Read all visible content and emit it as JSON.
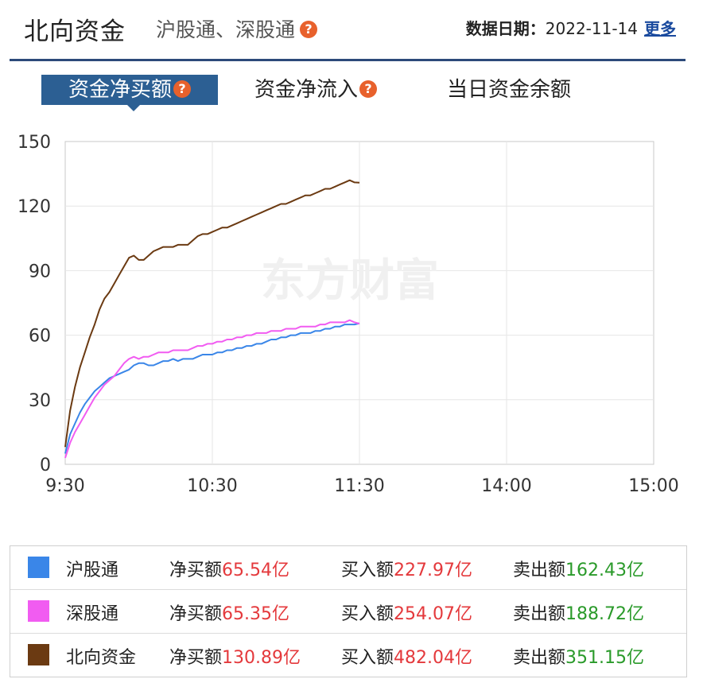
{
  "header": {
    "title": "北向资金",
    "subtitle": "沪股通、深股通",
    "help_symbol": "?",
    "date_label": "数据日期：",
    "date_value": "2022-11-14",
    "more_link": "更多"
  },
  "tabs": [
    {
      "label": "资金净买额",
      "active": true,
      "has_help": true
    },
    {
      "label": "资金净流入",
      "active": false,
      "has_help": true
    },
    {
      "label": "当日资金余额",
      "active": false,
      "has_help": false
    }
  ],
  "watermark": "东方财富",
  "chart_data": {
    "type": "line",
    "x_ticks": [
      "9:30",
      "10:30",
      "11:30",
      "14:00",
      "15:00"
    ],
    "y_ticks": [
      0,
      30,
      60,
      90,
      120,
      150
    ],
    "ylim": [
      0,
      150
    ],
    "x_minutes_range": [
      0,
      240
    ],
    "grid": true,
    "series": [
      {
        "name": "沪股通",
        "color": "#3a86e8",
        "points": [
          [
            0,
            5
          ],
          [
            2,
            14
          ],
          [
            4,
            19
          ],
          [
            6,
            24
          ],
          [
            8,
            28
          ],
          [
            10,
            31
          ],
          [
            12,
            34
          ],
          [
            14,
            36
          ],
          [
            16,
            38
          ],
          [
            18,
            40
          ],
          [
            20,
            41
          ],
          [
            22,
            42
          ],
          [
            24,
            43
          ],
          [
            26,
            44
          ],
          [
            28,
            46
          ],
          [
            30,
            47
          ],
          [
            32,
            47
          ],
          [
            34,
            46
          ],
          [
            36,
            46
          ],
          [
            38,
            47
          ],
          [
            40,
            48
          ],
          [
            42,
            48
          ],
          [
            44,
            49
          ],
          [
            46,
            48
          ],
          [
            48,
            49
          ],
          [
            50,
            49
          ],
          [
            52,
            49
          ],
          [
            54,
            50
          ],
          [
            56,
            51
          ],
          [
            58,
            51
          ],
          [
            60,
            51
          ],
          [
            62,
            52
          ],
          [
            64,
            52
          ],
          [
            66,
            53
          ],
          [
            68,
            53
          ],
          [
            70,
            54
          ],
          [
            72,
            54
          ],
          [
            74,
            55
          ],
          [
            76,
            55
          ],
          [
            78,
            56
          ],
          [
            80,
            56
          ],
          [
            82,
            57
          ],
          [
            84,
            58
          ],
          [
            86,
            58
          ],
          [
            88,
            59
          ],
          [
            90,
            59
          ],
          [
            92,
            60
          ],
          [
            94,
            60
          ],
          [
            96,
            61
          ],
          [
            98,
            61
          ],
          [
            100,
            61
          ],
          [
            102,
            62
          ],
          [
            104,
            62
          ],
          [
            106,
            63
          ],
          [
            108,
            63
          ],
          [
            110,
            64
          ],
          [
            112,
            64
          ],
          [
            114,
            65
          ],
          [
            116,
            65
          ],
          [
            118,
            65
          ],
          [
            120,
            65.54
          ]
        ]
      },
      {
        "name": "深股通",
        "color": "#f15cf1",
        "points": [
          [
            0,
            3
          ],
          [
            2,
            10
          ],
          [
            4,
            15
          ],
          [
            6,
            19
          ],
          [
            8,
            23
          ],
          [
            10,
            27
          ],
          [
            12,
            31
          ],
          [
            14,
            34
          ],
          [
            16,
            37
          ],
          [
            18,
            39
          ],
          [
            20,
            41
          ],
          [
            22,
            44
          ],
          [
            24,
            47
          ],
          [
            26,
            49
          ],
          [
            28,
            50
          ],
          [
            30,
            49
          ],
          [
            32,
            50
          ],
          [
            34,
            50
          ],
          [
            36,
            51
          ],
          [
            38,
            52
          ],
          [
            40,
            52
          ],
          [
            42,
            52
          ],
          [
            44,
            53
          ],
          [
            46,
            53
          ],
          [
            48,
            53
          ],
          [
            50,
            53
          ],
          [
            52,
            54
          ],
          [
            54,
            55
          ],
          [
            56,
            55
          ],
          [
            58,
            56
          ],
          [
            60,
            56
          ],
          [
            62,
            57
          ],
          [
            64,
            57
          ],
          [
            66,
            58
          ],
          [
            68,
            58
          ],
          [
            70,
            59
          ],
          [
            72,
            59
          ],
          [
            74,
            60
          ],
          [
            76,
            60
          ],
          [
            78,
            61
          ],
          [
            80,
            61
          ],
          [
            82,
            61
          ],
          [
            84,
            62
          ],
          [
            86,
            62
          ],
          [
            88,
            62
          ],
          [
            90,
            63
          ],
          [
            92,
            63
          ],
          [
            94,
            63
          ],
          [
            96,
            64
          ],
          [
            98,
            64
          ],
          [
            100,
            64
          ],
          [
            102,
            64
          ],
          [
            104,
            65
          ],
          [
            106,
            65
          ],
          [
            108,
            66
          ],
          [
            110,
            66
          ],
          [
            112,
            66
          ],
          [
            114,
            66
          ],
          [
            116,
            67
          ],
          [
            118,
            66
          ],
          [
            120,
            65.35
          ]
        ]
      },
      {
        "name": "北向资金",
        "color": "#6b3a12",
        "points": [
          [
            0,
            8
          ],
          [
            2,
            25
          ],
          [
            4,
            36
          ],
          [
            6,
            45
          ],
          [
            8,
            52
          ],
          [
            10,
            59
          ],
          [
            12,
            65
          ],
          [
            14,
            72
          ],
          [
            16,
            77
          ],
          [
            18,
            80
          ],
          [
            20,
            84
          ],
          [
            22,
            88
          ],
          [
            24,
            92
          ],
          [
            26,
            96
          ],
          [
            28,
            97
          ],
          [
            30,
            95
          ],
          [
            32,
            95
          ],
          [
            34,
            97
          ],
          [
            36,
            99
          ],
          [
            38,
            100
          ],
          [
            40,
            101
          ],
          [
            42,
            101
          ],
          [
            44,
            101
          ],
          [
            46,
            102
          ],
          [
            48,
            102
          ],
          [
            50,
            102
          ],
          [
            52,
            104
          ],
          [
            54,
            106
          ],
          [
            56,
            107
          ],
          [
            58,
            107
          ],
          [
            60,
            108
          ],
          [
            62,
            109
          ],
          [
            64,
            110
          ],
          [
            66,
            110
          ],
          [
            68,
            111
          ],
          [
            70,
            112
          ],
          [
            72,
            113
          ],
          [
            74,
            114
          ],
          [
            76,
            115
          ],
          [
            78,
            116
          ],
          [
            80,
            117
          ],
          [
            82,
            118
          ],
          [
            84,
            119
          ],
          [
            86,
            120
          ],
          [
            88,
            121
          ],
          [
            90,
            121
          ],
          [
            92,
            122
          ],
          [
            94,
            123
          ],
          [
            96,
            124
          ],
          [
            98,
            125
          ],
          [
            100,
            125
          ],
          [
            102,
            126
          ],
          [
            104,
            127
          ],
          [
            106,
            128
          ],
          [
            108,
            128
          ],
          [
            110,
            129
          ],
          [
            112,
            130
          ],
          [
            114,
            131
          ],
          [
            116,
            132
          ],
          [
            118,
            131
          ],
          [
            120,
            130.89
          ]
        ]
      }
    ]
  },
  "legend": [
    {
      "name": "沪股通",
      "color": "#3a86e8",
      "net_label": "净买额",
      "net_value": "65.54亿",
      "buy_label": "买入额",
      "buy_value": "227.97亿",
      "sell_label": "卖出额",
      "sell_value": "162.43亿"
    },
    {
      "name": "深股通",
      "color": "#f15cf1",
      "net_label": "净买额",
      "net_value": "65.35亿",
      "buy_label": "买入额",
      "buy_value": "254.07亿",
      "sell_label": "卖出额",
      "sell_value": "188.72亿"
    },
    {
      "name": "北向资金",
      "color": "#6b3a12",
      "net_label": "净买额",
      "net_value": "130.89亿",
      "buy_label": "买入额",
      "buy_value": "482.04亿",
      "sell_label": "卖出额",
      "sell_value": "351.15亿"
    }
  ]
}
